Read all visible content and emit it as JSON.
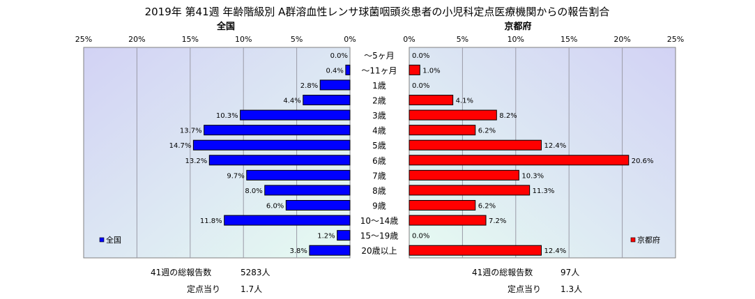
{
  "title": "2019年 第41週 年齢階級別 A群溶血性レンサ球菌咽頭炎患者の小児科定点医療機関からの報告割合",
  "chart_data": [
    {
      "type": "bar",
      "orientation": "horizontal",
      "subtitle": "全国",
      "legend": "全国",
      "legend_position": "bottom-left",
      "color": "#0000ff",
      "xlim": [
        0,
        25
      ],
      "x_direction": "reversed",
      "ticks": [
        "25%",
        "20%",
        "15%",
        "10%",
        "5%",
        "0%"
      ],
      "categories": [
        "～5ヶ月",
        "～11ヶ月",
        "1歳",
        "2歳",
        "3歳",
        "4歳",
        "5歳",
        "6歳",
        "7歳",
        "8歳",
        "9歳",
        "10～14歳",
        "15～19歳",
        "20歳以上"
      ],
      "values": [
        0.0,
        0.4,
        2.8,
        4.4,
        10.3,
        13.7,
        14.7,
        13.2,
        9.7,
        8.0,
        6.0,
        11.8,
        1.2,
        3.8
      ],
      "labels": [
        "0.0%",
        "0.4%",
        "2.8%",
        "4.4%",
        "10.3%",
        "13.7%",
        "14.7%",
        "13.2%",
        "9.7%",
        "8.0%",
        "6.0%",
        "11.8%",
        "1.2%",
        "3.8%"
      ],
      "grid": true
    },
    {
      "type": "bar",
      "orientation": "horizontal",
      "subtitle": "京都府",
      "legend": "京都府",
      "legend_position": "bottom-right",
      "color": "#ff0000",
      "xlim": [
        0,
        25
      ],
      "ticks": [
        "0%",
        "5%",
        "10%",
        "15%",
        "20%",
        "25%"
      ],
      "categories": [
        "～5ヶ月",
        "～11ヶ月",
        "1歳",
        "2歳",
        "3歳",
        "4歳",
        "5歳",
        "6歳",
        "7歳",
        "8歳",
        "9歳",
        "10～14歳",
        "15～19歳",
        "20歳以上"
      ],
      "values": [
        0.0,
        1.0,
        0.0,
        4.1,
        8.2,
        6.2,
        12.4,
        20.6,
        10.3,
        11.3,
        6.2,
        7.2,
        0.0,
        12.4
      ],
      "labels": [
        "0.0%",
        "1.0%",
        "0.0%",
        "4.1%",
        "8.2%",
        "6.2%",
        "12.4%",
        "20.6%",
        "10.3%",
        "11.3%",
        "6.2%",
        "7.2%",
        "0.0%",
        "12.4%"
      ],
      "grid": true
    }
  ],
  "footer": {
    "national": {
      "total_label": "41週の総報告数",
      "total_value": "5283人",
      "per_label": "定点当り",
      "per_value": "1.7人"
    },
    "kyoto": {
      "total_label": "41週の総報告数",
      "total_value": "97人",
      "per_label": "定点当り",
      "per_value": "1.3人"
    }
  }
}
